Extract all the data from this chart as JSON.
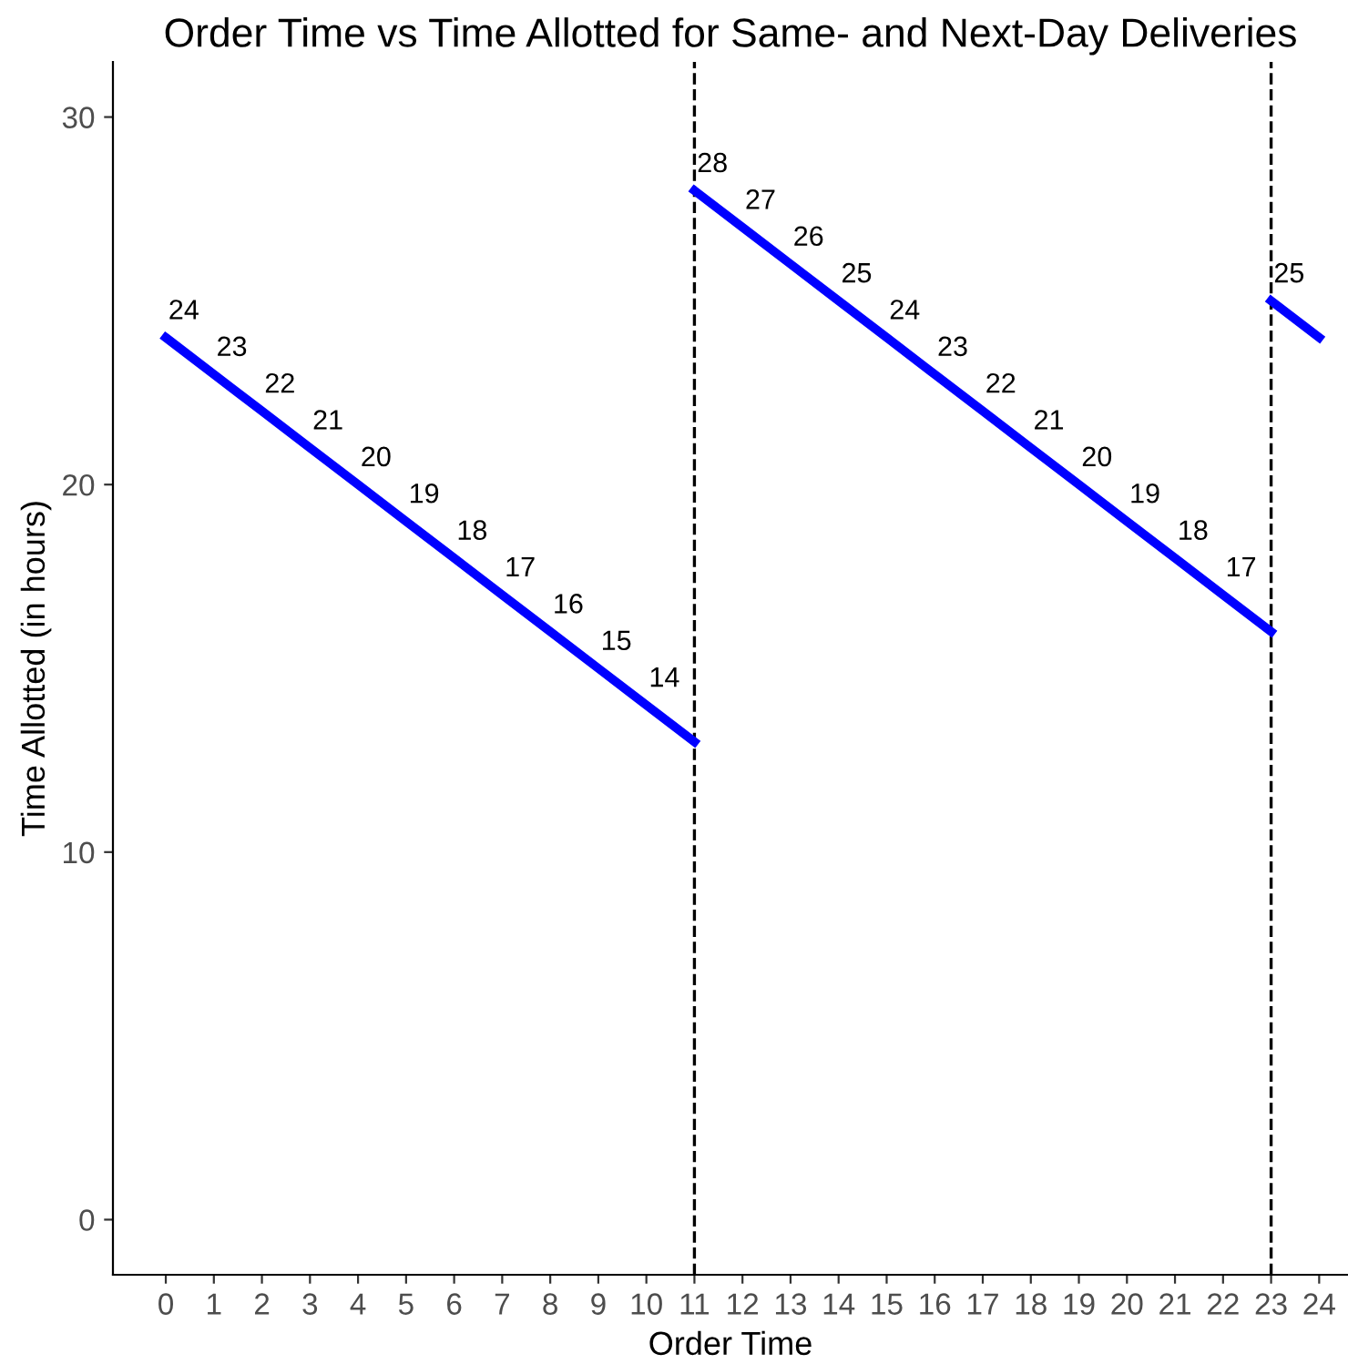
{
  "chart_data": {
    "type": "line",
    "title": "Order Time vs Time Allotted for Same- and Next-Day Deliveries",
    "xlabel": "Order Time",
    "ylabel": "Time Allotted (in hours)",
    "xlim": [
      -1.1,
      24.6
    ],
    "xticks": [
      0,
      1,
      2,
      3,
      4,
      5,
      6,
      7,
      8,
      9,
      10,
      11,
      12,
      13,
      14,
      15,
      16,
      17,
      18,
      19,
      20,
      21,
      22,
      23,
      24
    ],
    "ylim": [
      -1.5,
      31.5
    ],
    "yticks": [
      0,
      10,
      20,
      30
    ],
    "grid": false,
    "marker": "none",
    "line_style": "solid",
    "series": [
      {
        "color": "#0000ff",
        "x": [
          0,
          1,
          2,
          3,
          4,
          5,
          6,
          7,
          8,
          9,
          10,
          11
        ],
        "values": [
          24,
          23,
          22,
          21,
          20,
          19,
          18,
          17,
          16,
          15,
          14,
          13
        ],
        "value_labels": [
          "24",
          "23",
          "22",
          "21",
          "20",
          "19",
          "18",
          "17",
          "16",
          "15",
          "14",
          null
        ]
      },
      {
        "color": "#0000ff",
        "x": [
          11,
          12,
          13,
          14,
          15,
          16,
          17,
          18,
          19,
          20,
          21,
          22,
          23
        ],
        "values": [
          28,
          27,
          26,
          25,
          24,
          23,
          22,
          21,
          20,
          19,
          18,
          17,
          16
        ],
        "value_labels": [
          "28",
          "27",
          "26",
          "25",
          "24",
          "23",
          "22",
          "21",
          "20",
          "19",
          "18",
          "17",
          null
        ]
      },
      {
        "color": "#0000ff",
        "x": [
          23,
          24
        ],
        "values": [
          25,
          24
        ],
        "value_labels": [
          "25",
          null
        ]
      }
    ],
    "ref_lines": [
      {
        "axis": "x",
        "value": 11,
        "color": "#000000",
        "line_style": "dashed"
      },
      {
        "axis": "x",
        "value": 23,
        "color": "#000000",
        "line_style": "dashed"
      }
    ]
  }
}
